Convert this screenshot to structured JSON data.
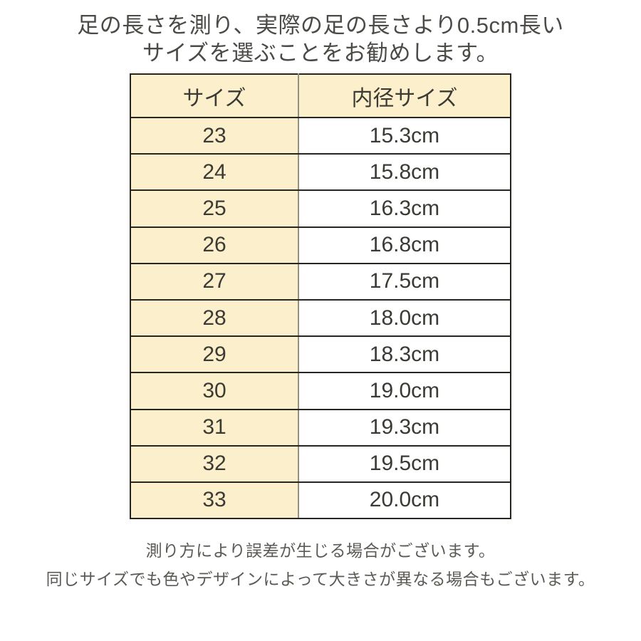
{
  "title": {
    "line1": "足の長さを測り、実際の足の長さより0.5cm長い",
    "line2": "サイズを選ぶことをお勧めします。"
  },
  "table": {
    "headers": {
      "size": "サイズ",
      "inner": "内径サイズ"
    },
    "rows": [
      {
        "size": "23",
        "inner": "15.3cm"
      },
      {
        "size": "24",
        "inner": "15.8cm"
      },
      {
        "size": "25",
        "inner": "16.3cm"
      },
      {
        "size": "26",
        "inner": "16.8cm"
      },
      {
        "size": "27",
        "inner": "17.5cm"
      },
      {
        "size": "28",
        "inner": "18.0cm"
      },
      {
        "size": "29",
        "inner": "18.3cm"
      },
      {
        "size": "30",
        "inner": "19.0cm"
      },
      {
        "size": "31",
        "inner": "19.3cm"
      },
      {
        "size": "32",
        "inner": "19.5cm"
      },
      {
        "size": "33",
        "inner": "20.0cm"
      }
    ]
  },
  "notes": {
    "line1": "測り方により誤差が生じる場合がございます。",
    "line2": "同じサイズでも色やデザインによって大きさが異なる場合もございます。"
  },
  "colors": {
    "cell_cream": "#fcf0cc",
    "cell_white": "#ffffff",
    "border_dark": "#26251f",
    "divider_gray": "#92907f",
    "title_text": "#4b4a46",
    "note_text": "#5c5a54",
    "table_text": "#3b3a34"
  }
}
